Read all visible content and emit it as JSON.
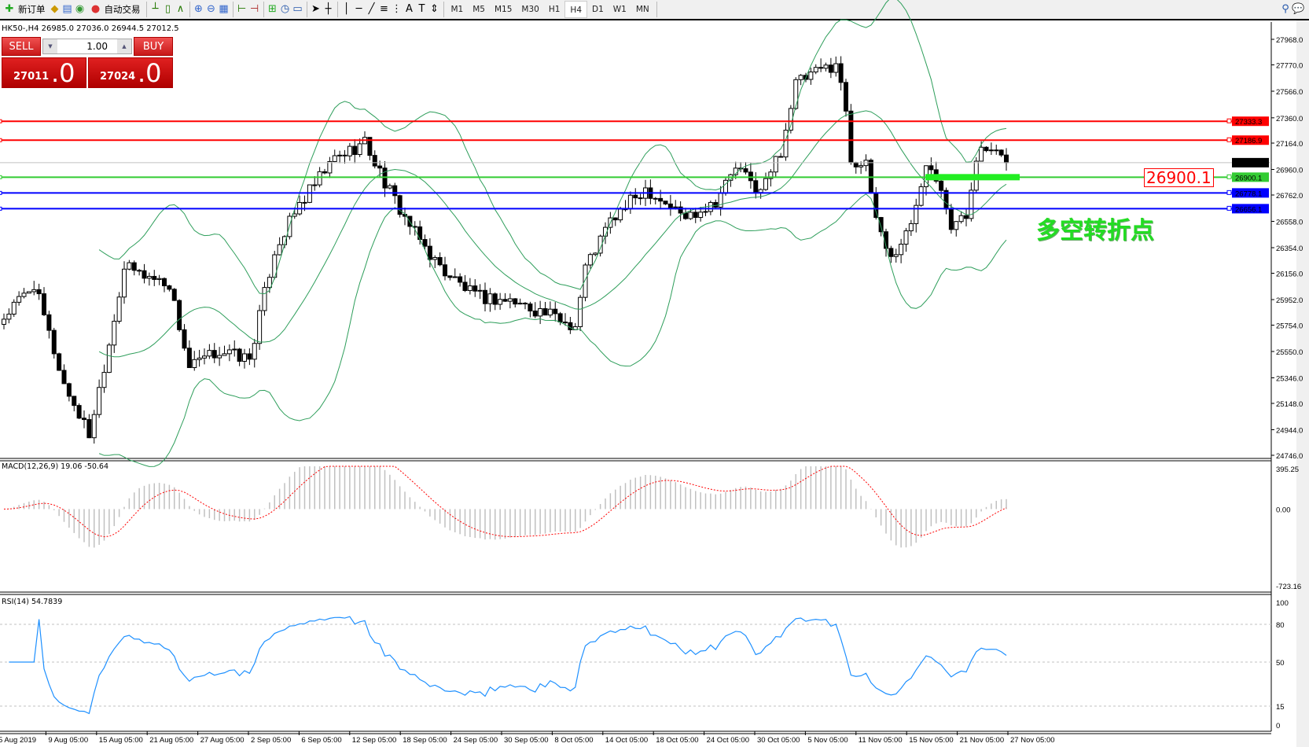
{
  "toolbar": {
    "new_order": "新订单",
    "auto_trading": "自动交易",
    "timeframes": [
      "M1",
      "M5",
      "M15",
      "M30",
      "H1",
      "H4",
      "D1",
      "W1",
      "MN"
    ],
    "active_timeframe": "H4",
    "icons": [
      "new-order-icon",
      "market-watch-icon",
      "navigator-icon",
      "signals-icon",
      "auto-trading-icon",
      "bar-chart-icon",
      "candlestick-icon",
      "line-chart-icon",
      "zoom-in-icon",
      "zoom-out-icon",
      "tile-windows-icon",
      "chart-shift-icon",
      "auto-scroll-icon",
      "indicators-icon",
      "periods-icon",
      "templates-icon",
      "cursor-icon",
      "crosshair-icon",
      "vertical-line-icon",
      "horizontal-line-icon",
      "trendline-icon",
      "equidistant-channel-icon",
      "fibonacci-icon",
      "text-icon",
      "text-label-icon",
      "arrows-icon",
      "search-icon",
      "chat-icon"
    ]
  },
  "chart": {
    "title": "HK50-,H4  26985.0 27036.0 26944.5 27012.5",
    "trade_panel": {
      "sell_label": "SELL",
      "buy_label": "BUY",
      "lot": "1.00",
      "sell_price_main": "27011",
      "sell_price_frac": ".0",
      "buy_price_main": "27024",
      "buy_price_frac": ".0"
    },
    "price_axis_ticks": [
      "27968.0",
      "27770.0",
      "27566.0",
      "27360.0",
      "27164.0",
      "26960.0",
      "26762.0",
      "26558.0",
      "26354.0",
      "26156.0",
      "25952.0",
      "25754.0",
      "25550.0",
      "25346.0",
      "25148.0",
      "24944.0",
      "24746.0"
    ],
    "horizontal_lines": [
      {
        "value": "27333.3",
        "color": "#ff0000"
      },
      {
        "value": "27186.9",
        "color": "#ff0000"
      },
      {
        "value": "26900.1",
        "color": "#33cc33"
      },
      {
        "value": "26778.1",
        "color": "#0000ff"
      },
      {
        "value": "26656.1",
        "color": "#0000ff"
      }
    ],
    "bid_line": {
      "value": "27012.5",
      "color": "#000000"
    },
    "note_label": "26900.1",
    "note_text": "多空转折点",
    "time_axis": [
      "5 Aug 2019",
      "9 Aug 05:00",
      "15 Aug 05:00",
      "21 Aug 05:00",
      "27 Aug 05:00",
      "2 Sep 05:00",
      "6 Sep 05:00",
      "12 Sep 05:00",
      "18 Sep 05:00",
      "24 Sep 05:00",
      "30 Sep 05:00",
      "8 Oct 05:00",
      "14 Oct 05:00",
      "18 Oct 05:00",
      "24 Oct 05:00",
      "30 Oct 05:00",
      "5 Nov 05:00",
      "11 Nov 05:00",
      "15 Nov 05:00",
      "21 Nov 05:00",
      "27 Nov 05:00"
    ]
  },
  "macd": {
    "label": "MACD(12,26,9) 19.06 -50.64",
    "ticks": [
      "395.25",
      "0.00",
      "-723.16"
    ],
    "max": 395.25,
    "min": -723.16
  },
  "rsi": {
    "label": "RSI(14) 54.7839",
    "ticks": [
      "100",
      "80",
      "50",
      "15",
      "0"
    ]
  },
  "chart_data": {
    "type": "candlestick",
    "symbol": "HK50-",
    "timeframe": "H4",
    "ylim": [
      24746.0,
      27968.0
    ],
    "approx_close_path": [
      [
        0,
        25813
      ],
      [
        6,
        26072
      ],
      [
        12,
        25296
      ],
      [
        17,
        24908
      ],
      [
        21,
        25619
      ],
      [
        24,
        26202
      ],
      [
        33,
        26072
      ],
      [
        37,
        25425
      ],
      [
        43,
        25554
      ],
      [
        49,
        25490
      ],
      [
        54,
        26331
      ],
      [
        59,
        26687
      ],
      [
        66,
        27043
      ],
      [
        72,
        27172
      ],
      [
        77,
        26784
      ],
      [
        82,
        26461
      ],
      [
        87,
        26202
      ],
      [
        94,
        25975
      ],
      [
        101,
        25943
      ],
      [
        106,
        25878
      ],
      [
        114,
        25749
      ],
      [
        116,
        26202
      ],
      [
        121,
        26558
      ],
      [
        128,
        26817
      ],
      [
        136,
        26590
      ],
      [
        142,
        26719
      ],
      [
        146,
        26978
      ],
      [
        151,
        26784
      ],
      [
        155,
        27108
      ],
      [
        158,
        27625
      ],
      [
        166,
        27787
      ],
      [
        168,
        27431
      ],
      [
        169,
        27043
      ],
      [
        172,
        26978
      ],
      [
        174,
        26590
      ],
      [
        177,
        26267
      ],
      [
        181,
        26526
      ],
      [
        184,
        27043
      ],
      [
        187,
        26849
      ],
      [
        189,
        26526
      ],
      [
        192,
        26590
      ],
      [
        194,
        27075
      ],
      [
        196,
        27108
      ],
      [
        200,
        27012
      ]
    ],
    "indicators": [
      "Bollinger Bands(20,2)",
      "MACD(12,26,9)",
      "RSI(14)"
    ],
    "colors": {
      "bollinger": "#2e9e5b",
      "macd_hist": "#c0c0c0",
      "macd_signal": "#ff0000",
      "rsi": "#1e90ff"
    }
  }
}
